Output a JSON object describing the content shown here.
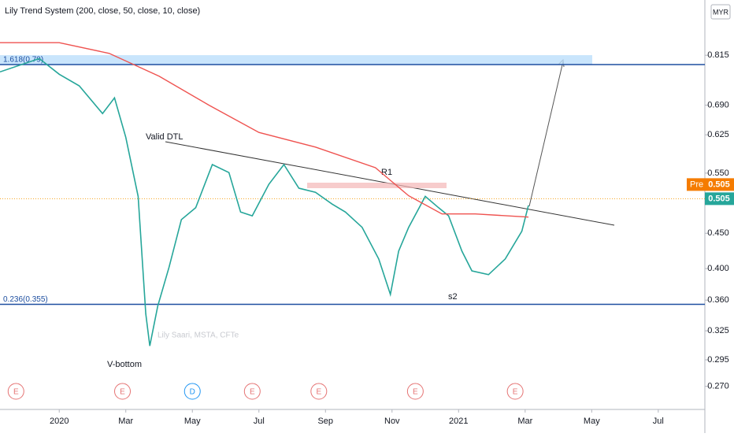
{
  "chart_data": {
    "type": "line",
    "title": "Lily Trend System (200, close, 50, close, 10, close)",
    "currency": "MYR",
    "log_scale": true,
    "ylim": [
      0.25,
      0.98
    ],
    "yticks": [
      0.27,
      0.295,
      0.325,
      0.36,
      0.4,
      0.45,
      0.55,
      0.625,
      0.69,
      0.815
    ],
    "ytick_labels": [
      "0.270",
      "0.295",
      "0.325",
      "0.360",
      "0.400",
      "0.450",
      "0.550",
      "0.625",
      "0.690",
      "0.815"
    ],
    "xlim": [
      -1.78,
      19.4
    ],
    "xticks": [
      {
        "value": 0,
        "label": "2020"
      },
      {
        "value": 2,
        "label": "Mar"
      },
      {
        "value": 4,
        "label": "May"
      },
      {
        "value": 6,
        "label": "Jul"
      },
      {
        "value": 8,
        "label": "Sep"
      },
      {
        "value": 10,
        "label": "Nov"
      },
      {
        "value": 12,
        "label": "2021"
      },
      {
        "value": 14,
        "label": "Mar"
      },
      {
        "value": 16,
        "label": "May"
      },
      {
        "value": 18,
        "label": "Jul"
      }
    ],
    "series": [
      {
        "color": "#26a69a",
        "x": [
          -1.78,
          -0.6,
          0,
          0.6,
          1.3,
          1.66,
          2,
          2.37,
          2.6,
          2.72,
          2.96,
          3.3,
          3.67,
          4.1,
          4.6,
          5.1,
          5.45,
          5.8,
          6.3,
          6.75,
          7.2,
          7.7,
          8.2,
          8.6,
          9.1,
          9.6,
          9.95,
          10.2,
          10.5,
          11,
          11.4,
          11.7,
          12.1,
          12.4,
          12.9,
          13.4,
          13.9,
          14.1
        ],
        "values": [
          0.771,
          0.806,
          0.765,
          0.736,
          0.671,
          0.707,
          0.62,
          0.509,
          0.344,
          0.309,
          0.353,
          0.402,
          0.471,
          0.49,
          0.566,
          0.551,
          0.483,
          0.477,
          0.53,
          0.566,
          0.523,
          0.516,
          0.496,
          0.483,
          0.459,
          0.413,
          0.367,
          0.424,
          0.459,
          0.509,
          0.49,
          0.477,
          0.424,
          0.397,
          0.392,
          0.413,
          0.453,
          0.494
        ]
      },
      {
        "color": "#ef5350",
        "x": [
          -1.78,
          0,
          1.5,
          3,
          4.5,
          6,
          7.7,
          9.5,
          10.5,
          11.5,
          12.5,
          14.1
        ],
        "values": [
          0.85,
          0.85,
          0.82,
          0.76,
          0.69,
          0.63,
          0.6,
          0.56,
          0.51,
          0.48,
          0.48,
          0.475
        ]
      }
    ],
    "levels": [
      {
        "value": 0.79,
        "label": "1.618(0.79)"
      },
      {
        "value": 0.355,
        "label": "0.236(0.355)"
      }
    ],
    "last_price": {
      "value": 0.505,
      "label": "0.505"
    },
    "pre_price": {
      "tag": "Pre",
      "value": 0.505,
      "label": "0.505"
    },
    "events": [
      {
        "x": -1.3,
        "label": "E",
        "color": "#e57373"
      },
      {
        "x": 1.9,
        "label": "E",
        "color": "#e57373"
      },
      {
        "x": 4.0,
        "label": "D",
        "color": "#2196f3"
      },
      {
        "x": 5.8,
        "label": "E",
        "color": "#e57373"
      },
      {
        "x": 7.8,
        "label": "E",
        "color": "#e57373"
      },
      {
        "x": 10.7,
        "label": "E",
        "color": "#e57373"
      },
      {
        "x": 13.7,
        "label": "E",
        "color": "#e57373"
      }
    ],
    "annotations": [
      "Valid DTL",
      "R1",
      "s2",
      "V-bottom",
      "Lily Saari, MSTA, CFTe"
    ]
  }
}
